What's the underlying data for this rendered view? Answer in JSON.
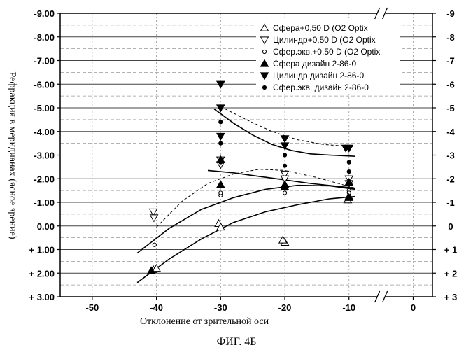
{
  "chart_data": {
    "type": "scatter",
    "xlabel": "Отклонение от зрительной оси",
    "ylabel": "Рефракция в меридианах (ясное зрение)",
    "caption": "ФИГ. 4Б",
    "x_ticks": [
      "-50",
      "-40",
      "-30",
      "-20",
      "-10",
      "0"
    ],
    "y_ticks_left": [
      "-9.00",
      "-8.00",
      "-7.00",
      "-6.00",
      "-5.00",
      "-4.00",
      "-3.00",
      "-2.00",
      "-1.00",
      "0.00",
      "+ 1.00",
      "+ 2.00",
      "+ 3.00"
    ],
    "y_ticks_right": [
      "-9",
      "-8",
      "-7",
      "-6",
      "-5",
      "-4",
      "-3",
      "-2",
      "-1",
      "0",
      "+ 1",
      "+ 2",
      "+ 3"
    ],
    "xlim": [
      -55,
      3
    ],
    "ylim": [
      -9,
      3
    ],
    "y_inverted": true,
    "axis_break_x": -5,
    "grid": true,
    "legend_position": "top-right",
    "series": [
      {
        "name": "Сфера+0,50 D (O2 Optix",
        "marker": "triangle-up-open",
        "points": [
          [
            -40.5,
            1.85
          ],
          [
            -40,
            1.8
          ],
          [
            -30.3,
            -0.1
          ],
          [
            -30,
            0.05
          ],
          [
            -20,
            0.7
          ],
          [
            -20.3,
            0.6
          ],
          [
            -10,
            -1.25
          ],
          [
            -10.2,
            -1.1
          ]
        ]
      },
      {
        "name": "Цилиндр+0,50 D (O2 Optix",
        "marker": "triangle-down-open",
        "points": [
          [
            -40.5,
            -0.6
          ],
          [
            -40.4,
            -0.35
          ],
          [
            -30,
            -2.8
          ],
          [
            -30,
            -2.6
          ],
          [
            -20,
            -2.2
          ],
          [
            -20,
            -2.0
          ],
          [
            -10,
            -2.0
          ],
          [
            -10,
            -1.8
          ]
        ]
      },
      {
        "name": "Сфер.экв.+0,50 D (O2 Optix",
        "marker": "circle-open",
        "points": [
          [
            -40.3,
            0.8
          ],
          [
            -30,
            -1.3
          ],
          [
            -30,
            -1.4
          ],
          [
            -20,
            -1.4
          ],
          [
            -20,
            -1.6
          ],
          [
            -10,
            -1.5
          ],
          [
            -10,
            -1.4
          ]
        ]
      },
      {
        "name": "Сфера дизайн 2-86-0",
        "marker": "triangle-up-filled",
        "points": [
          [
            -40.8,
            1.9
          ],
          [
            -30,
            -1.75
          ],
          [
            -30,
            -2.8
          ],
          [
            -20,
            -1.65
          ],
          [
            -20,
            -1.75
          ],
          [
            -10,
            -1.2
          ],
          [
            -10,
            -1.85
          ]
        ]
      },
      {
        "name": "Цилиндр дизайн 2-86-0",
        "marker": "triangle-down-filled",
        "points": [
          [
            -30,
            -6.0
          ],
          [
            -30,
            -5.0
          ],
          [
            -30,
            -3.8
          ],
          [
            -20,
            -3.7
          ],
          [
            -20,
            -3.4
          ],
          [
            -10,
            -3.3
          ],
          [
            -10.5,
            -3.3
          ]
        ]
      },
      {
        "name": "Сфер.экв. дизайн 2-86-0",
        "marker": "circle-filled",
        "points": [
          [
            -30,
            -4.4
          ],
          [
            -30,
            -3.5
          ],
          [
            -30,
            -2.7
          ],
          [
            -20,
            -3.0
          ],
          [
            -20,
            -2.55
          ],
          [
            -10,
            -2.7
          ],
          [
            -10,
            -2.3
          ]
        ]
      }
    ],
    "fit_lines": [
      {
        "style": "solid",
        "points": [
          [
            -43,
            2.4
          ],
          [
            -38,
            1.4
          ],
          [
            -33,
            0.55
          ],
          [
            -28,
            -0.15
          ],
          [
            -23,
            -0.6
          ],
          [
            -18,
            -0.9
          ],
          [
            -13,
            -1.15
          ],
          [
            -9,
            -1.25
          ]
        ]
      },
      {
        "style": "solid",
        "points": [
          [
            -43,
            1.15
          ],
          [
            -38,
            0.1
          ],
          [
            -33,
            -0.7
          ],
          [
            -28,
            -1.2
          ],
          [
            -23,
            -1.55
          ],
          [
            -18,
            -1.72
          ],
          [
            -13,
            -1.7
          ],
          [
            -9,
            -1.55
          ]
        ]
      },
      {
        "style": "dashed",
        "points": [
          [
            -40,
            0.05
          ],
          [
            -36,
            -1.05
          ],
          [
            -32,
            -1.8
          ],
          [
            -28,
            -2.2
          ],
          [
            -24,
            -2.4
          ],
          [
            -20,
            -2.35
          ],
          [
            -15,
            -2.05
          ],
          [
            -9,
            -1.6
          ]
        ]
      },
      {
        "style": "solid",
        "points": [
          [
            -32,
            -2.35
          ],
          [
            -28,
            -2.25
          ],
          [
            -24,
            -2.1
          ],
          [
            -20,
            -1.95
          ],
          [
            -16,
            -1.8
          ],
          [
            -9,
            -1.6
          ]
        ]
      },
      {
        "style": "solid",
        "points": [
          [
            -31,
            -4.95
          ],
          [
            -28,
            -4.35
          ],
          [
            -25,
            -3.85
          ],
          [
            -22,
            -3.45
          ],
          [
            -19,
            -3.2
          ],
          [
            -16,
            -3.05
          ],
          [
            -13,
            -3.0
          ],
          [
            -9,
            -2.95
          ]
        ]
      },
      {
        "style": "dashed",
        "points": [
          [
            -30,
            -5.05
          ],
          [
            -26,
            -4.5
          ],
          [
            -22,
            -4.0
          ],
          [
            -18,
            -3.65
          ],
          [
            -14,
            -3.45
          ],
          [
            -9,
            -3.35
          ]
        ]
      }
    ]
  }
}
